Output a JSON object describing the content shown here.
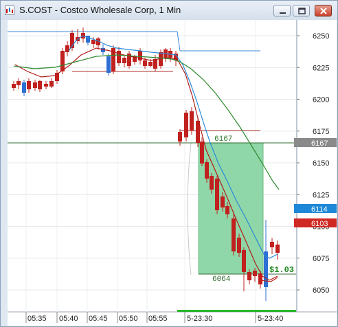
{
  "window": {
    "title": "S.COST - Costco Wholesale Corp, 1 Min",
    "minimize_icon": "minimize-icon",
    "maximize_icon": "maximize-icon",
    "close_icon": "close-icon"
  },
  "chart": {
    "price_axis": [
      "6250",
      "6225",
      "6200",
      "6175",
      "6150",
      "6125",
      "6100",
      "6075",
      "6050"
    ],
    "time_axis": [
      "05:35",
      "05:40",
      "05:45",
      "05:50",
      "05:55",
      "5-23:30",
      "5-23:40"
    ],
    "tags": {
      "gray": "6167",
      "blue": "6114",
      "red": "6103"
    },
    "annotations": {
      "entry": "6167",
      "exit": "6064",
      "profit": "$1.03"
    },
    "colors": {
      "bull": "#2d6fd2",
      "bear": "#c0201e",
      "ema_fast": "#2a8ad8",
      "ema_slow": "#2d8a2d",
      "ema_red": "#c8201c",
      "trade_zone": "#8fd6a8",
      "profit_text": "#1e8a1e"
    }
  }
}
